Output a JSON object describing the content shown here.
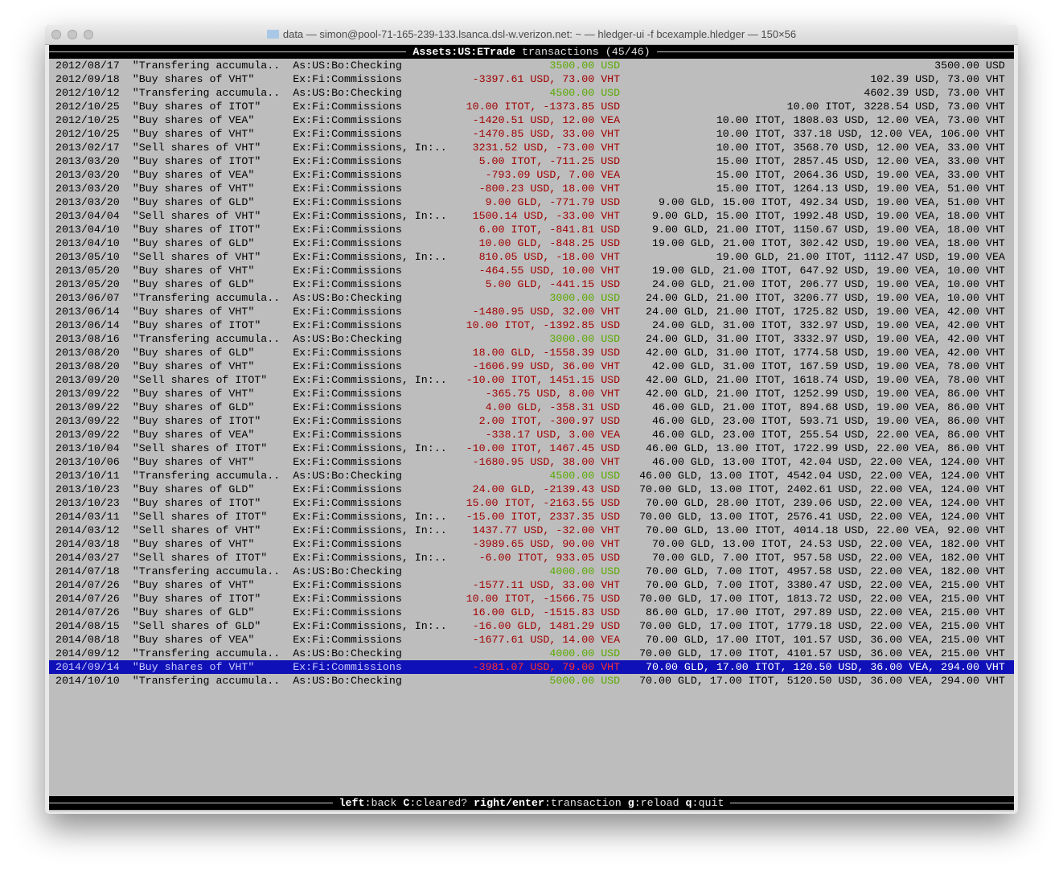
{
  "window": {
    "title": "data — simon@pool-71-165-239-133.lsanca.dsl-w.verizon.net: ~ — hledger-ui -f bcexample.hledger — 150×56"
  },
  "header": {
    "account": "Assets:US:ETrade",
    "label": "transactions",
    "count": "(45/46)"
  },
  "footer": {
    "keys": [
      {
        "key": "left",
        "action": "back"
      },
      {
        "key": "C",
        "action": "cleared?"
      },
      {
        "key": "right/enter",
        "action": "transaction"
      },
      {
        "key": "g",
        "action": "reload"
      },
      {
        "key": "q",
        "action": "quit"
      }
    ]
  },
  "colors": {
    "negative": "#a00000",
    "positive": "#5aaa00",
    "selection": "#1010b8",
    "background": "#bdbdbd"
  },
  "selected_index": 44,
  "rows": [
    [
      "2012/08/17",
      "\"Transfering accumula..",
      "As:US:Bo:Checking",
      "3500.00 USD",
      "3500.00 USD",
      "pos"
    ],
    [
      "2012/09/18",
      "\"Buy shares of VHT\"",
      "Ex:Fi:Commissions",
      "-3397.61 USD, 73.00 VHT",
      "102.39 USD, 73.00 VHT",
      "neg"
    ],
    [
      "2012/10/12",
      "\"Transfering accumula..",
      "As:US:Bo:Checking",
      "4500.00 USD",
      "4602.39 USD, 73.00 VHT",
      "pos"
    ],
    [
      "2012/10/25",
      "\"Buy shares of ITOT\"",
      "Ex:Fi:Commissions",
      "10.00 ITOT, -1373.85 USD",
      "10.00 ITOT, 3228.54 USD, 73.00 VHT",
      "neg"
    ],
    [
      "2012/10/25",
      "\"Buy shares of VEA\"",
      "Ex:Fi:Commissions",
      "-1420.51 USD, 12.00 VEA",
      "10.00 ITOT, 1808.03 USD, 12.00 VEA, 73.00 VHT",
      "neg"
    ],
    [
      "2012/10/25",
      "\"Buy shares of VHT\"",
      "Ex:Fi:Commissions",
      "-1470.85 USD, 33.00 VHT",
      "10.00 ITOT, 337.18 USD, 12.00 VEA, 106.00 VHT",
      "neg"
    ],
    [
      "2013/02/17",
      "\"Sell shares of VHT\"",
      "Ex:Fi:Commissions, In:..",
      "3231.52 USD, -73.00 VHT",
      "10.00 ITOT, 3568.70 USD, 12.00 VEA, 33.00 VHT",
      "neg"
    ],
    [
      "2013/03/20",
      "\"Buy shares of ITOT\"",
      "Ex:Fi:Commissions",
      "5.00 ITOT, -711.25 USD",
      "15.00 ITOT, 2857.45 USD, 12.00 VEA, 33.00 VHT",
      "neg"
    ],
    [
      "2013/03/20",
      "\"Buy shares of VEA\"",
      "Ex:Fi:Commissions",
      "-793.09 USD, 7.00 VEA",
      "15.00 ITOT, 2064.36 USD, 19.00 VEA, 33.00 VHT",
      "neg"
    ],
    [
      "2013/03/20",
      "\"Buy shares of VHT\"",
      "Ex:Fi:Commissions",
      "-800.23 USD, 18.00 VHT",
      "15.00 ITOT, 1264.13 USD, 19.00 VEA, 51.00 VHT",
      "neg"
    ],
    [
      "2013/03/20",
      "\"Buy shares of GLD\"",
      "Ex:Fi:Commissions",
      "9.00 GLD, -771.79 USD",
      "9.00 GLD, 15.00 ITOT, 492.34 USD, 19.00 VEA, 51.00 VHT",
      "neg"
    ],
    [
      "2013/04/04",
      "\"Sell shares of VHT\"",
      "Ex:Fi:Commissions, In:..",
      "1500.14 USD, -33.00 VHT",
      "9.00 GLD, 15.00 ITOT, 1992.48 USD, 19.00 VEA, 18.00 VHT",
      "neg"
    ],
    [
      "2013/04/10",
      "\"Buy shares of ITOT\"",
      "Ex:Fi:Commissions",
      "6.00 ITOT, -841.81 USD",
      "9.00 GLD, 21.00 ITOT, 1150.67 USD, 19.00 VEA, 18.00 VHT",
      "neg"
    ],
    [
      "2013/04/10",
      "\"Buy shares of GLD\"",
      "Ex:Fi:Commissions",
      "10.00 GLD, -848.25 USD",
      "19.00 GLD, 21.00 ITOT, 302.42 USD, 19.00 VEA, 18.00 VHT",
      "neg"
    ],
    [
      "2013/05/10",
      "\"Sell shares of VHT\"",
      "Ex:Fi:Commissions, In:..",
      "810.05 USD, -18.00 VHT",
      "19.00 GLD, 21.00 ITOT, 1112.47 USD, 19.00 VEA",
      "neg"
    ],
    [
      "2013/05/20",
      "\"Buy shares of VHT\"",
      "Ex:Fi:Commissions",
      "-464.55 USD, 10.00 VHT",
      "19.00 GLD, 21.00 ITOT, 647.92 USD, 19.00 VEA, 10.00 VHT",
      "neg"
    ],
    [
      "2013/05/20",
      "\"Buy shares of GLD\"",
      "Ex:Fi:Commissions",
      "5.00 GLD, -441.15 USD",
      "24.00 GLD, 21.00 ITOT, 206.77 USD, 19.00 VEA, 10.00 VHT",
      "neg"
    ],
    [
      "2013/06/07",
      "\"Transfering accumula..",
      "As:US:Bo:Checking",
      "3000.00 USD",
      "24.00 GLD, 21.00 ITOT, 3206.77 USD, 19.00 VEA, 10.00 VHT",
      "pos"
    ],
    [
      "2013/06/14",
      "\"Buy shares of VHT\"",
      "Ex:Fi:Commissions",
      "-1480.95 USD, 32.00 VHT",
      "24.00 GLD, 21.00 ITOT, 1725.82 USD, 19.00 VEA, 42.00 VHT",
      "neg"
    ],
    [
      "2013/06/14",
      "\"Buy shares of ITOT\"",
      "Ex:Fi:Commissions",
      "10.00 ITOT, -1392.85 USD",
      "24.00 GLD, 31.00 ITOT, 332.97 USD, 19.00 VEA, 42.00 VHT",
      "neg"
    ],
    [
      "2013/08/16",
      "\"Transfering accumula..",
      "As:US:Bo:Checking",
      "3000.00 USD",
      "24.00 GLD, 31.00 ITOT, 3332.97 USD, 19.00 VEA, 42.00 VHT",
      "pos"
    ],
    [
      "2013/08/20",
      "\"Buy shares of GLD\"",
      "Ex:Fi:Commissions",
      "18.00 GLD, -1558.39 USD",
      "42.00 GLD, 31.00 ITOT, 1774.58 USD, 19.00 VEA, 42.00 VHT",
      "neg"
    ],
    [
      "2013/08/20",
      "\"Buy shares of VHT\"",
      "Ex:Fi:Commissions",
      "-1606.99 USD, 36.00 VHT",
      "42.00 GLD, 31.00 ITOT, 167.59 USD, 19.00 VEA, 78.00 VHT",
      "neg"
    ],
    [
      "2013/09/20",
      "\"Sell shares of ITOT\"",
      "Ex:Fi:Commissions, In:..",
      "-10.00 ITOT, 1451.15 USD",
      "42.00 GLD, 21.00 ITOT, 1618.74 USD, 19.00 VEA, 78.00 VHT",
      "neg"
    ],
    [
      "2013/09/22",
      "\"Buy shares of VHT\"",
      "Ex:Fi:Commissions",
      "-365.75 USD, 8.00 VHT",
      "42.00 GLD, 21.00 ITOT, 1252.99 USD, 19.00 VEA, 86.00 VHT",
      "neg"
    ],
    [
      "2013/09/22",
      "\"Buy shares of GLD\"",
      "Ex:Fi:Commissions",
      "4.00 GLD, -358.31 USD",
      "46.00 GLD, 21.00 ITOT, 894.68 USD, 19.00 VEA, 86.00 VHT",
      "neg"
    ],
    [
      "2013/09/22",
      "\"Buy shares of ITOT\"",
      "Ex:Fi:Commissions",
      "2.00 ITOT, -300.97 USD",
      "46.00 GLD, 23.00 ITOT, 593.71 USD, 19.00 VEA, 86.00 VHT",
      "neg"
    ],
    [
      "2013/09/22",
      "\"Buy shares of VEA\"",
      "Ex:Fi:Commissions",
      "-338.17 USD, 3.00 VEA",
      "46.00 GLD, 23.00 ITOT, 255.54 USD, 22.00 VEA, 86.00 VHT",
      "neg"
    ],
    [
      "2013/10/04",
      "\"Sell shares of ITOT\"",
      "Ex:Fi:Commissions, In:..",
      "-10.00 ITOT, 1467.45 USD",
      "46.00 GLD, 13.00 ITOT, 1722.99 USD, 22.00 VEA, 86.00 VHT",
      "neg"
    ],
    [
      "2013/10/06",
      "\"Buy shares of VHT\"",
      "Ex:Fi:Commissions",
      "-1680.95 USD, 38.00 VHT",
      "46.00 GLD, 13.00 ITOT, 42.04 USD, 22.00 VEA, 124.00 VHT",
      "neg"
    ],
    [
      "2013/10/11",
      "\"Transfering accumula..",
      "As:US:Bo:Checking",
      "4500.00 USD",
      "46.00 GLD, 13.00 ITOT, 4542.04 USD, 22.00 VEA, 124.00 VHT",
      "pos"
    ],
    [
      "2013/10/23",
      "\"Buy shares of GLD\"",
      "Ex:Fi:Commissions",
      "24.00 GLD, -2139.43 USD",
      "70.00 GLD, 13.00 ITOT, 2402.61 USD, 22.00 VEA, 124.00 VHT",
      "neg"
    ],
    [
      "2013/10/23",
      "\"Buy shares of ITOT\"",
      "Ex:Fi:Commissions",
      "15.00 ITOT, -2163.55 USD",
      "70.00 GLD, 28.00 ITOT, 239.06 USD, 22.00 VEA, 124.00 VHT",
      "neg"
    ],
    [
      "2014/03/11",
      "\"Sell shares of ITOT\"",
      "Ex:Fi:Commissions, In:..",
      "-15.00 ITOT, 2337.35 USD",
      "70.00 GLD, 13.00 ITOT, 2576.41 USD, 22.00 VEA, 124.00 VHT",
      "neg"
    ],
    [
      "2014/03/12",
      "\"Sell shares of VHT\"",
      "Ex:Fi:Commissions, In:..",
      "1437.77 USD, -32.00 VHT",
      "70.00 GLD, 13.00 ITOT, 4014.18 USD, 22.00 VEA, 92.00 VHT",
      "neg"
    ],
    [
      "2014/03/18",
      "\"Buy shares of VHT\"",
      "Ex:Fi:Commissions",
      "-3989.65 USD, 90.00 VHT",
      "70.00 GLD, 13.00 ITOT, 24.53 USD, 22.00 VEA, 182.00 VHT",
      "neg"
    ],
    [
      "2014/03/27",
      "\"Sell shares of ITOT\"",
      "Ex:Fi:Commissions, In:..",
      "-6.00 ITOT, 933.05 USD",
      "70.00 GLD, 7.00 ITOT, 957.58 USD, 22.00 VEA, 182.00 VHT",
      "neg"
    ],
    [
      "2014/07/18",
      "\"Transfering accumula..",
      "As:US:Bo:Checking",
      "4000.00 USD",
      "70.00 GLD, 7.00 ITOT, 4957.58 USD, 22.00 VEA, 182.00 VHT",
      "pos"
    ],
    [
      "2014/07/26",
      "\"Buy shares of VHT\"",
      "Ex:Fi:Commissions",
      "-1577.11 USD, 33.00 VHT",
      "70.00 GLD, 7.00 ITOT, 3380.47 USD, 22.00 VEA, 215.00 VHT",
      "neg"
    ],
    [
      "2014/07/26",
      "\"Buy shares of ITOT\"",
      "Ex:Fi:Commissions",
      "10.00 ITOT, -1566.75 USD",
      "70.00 GLD, 17.00 ITOT, 1813.72 USD, 22.00 VEA, 215.00 VHT",
      "neg"
    ],
    [
      "2014/07/26",
      "\"Buy shares of GLD\"",
      "Ex:Fi:Commissions",
      "16.00 GLD, -1515.83 USD",
      "86.00 GLD, 17.00 ITOT, 297.89 USD, 22.00 VEA, 215.00 VHT",
      "neg"
    ],
    [
      "2014/08/15",
      "\"Sell shares of GLD\"",
      "Ex:Fi:Commissions, In:..",
      "-16.00 GLD, 1481.29 USD",
      "70.00 GLD, 17.00 ITOT, 1779.18 USD, 22.00 VEA, 215.00 VHT",
      "neg"
    ],
    [
      "2014/08/18",
      "\"Buy shares of VEA\"",
      "Ex:Fi:Commissions",
      "-1677.61 USD, 14.00 VEA",
      "70.00 GLD, 17.00 ITOT, 101.57 USD, 36.00 VEA, 215.00 VHT",
      "neg"
    ],
    [
      "2014/09/12",
      "\"Transfering accumula..",
      "As:US:Bo:Checking",
      "4000.00 USD",
      "70.00 GLD, 17.00 ITOT, 4101.57 USD, 36.00 VEA, 215.00 VHT",
      "pos"
    ],
    [
      "2014/09/14",
      "\"Buy shares of VHT\"",
      "Ex:Fi:Commissions",
      "-3981.07 USD, 79.00 VHT",
      "70.00 GLD, 17.00 ITOT, 120.50 USD, 36.00 VEA, 294.00 VHT",
      "neg"
    ],
    [
      "2014/10/10",
      "\"Transfering accumula..",
      "As:US:Bo:Checking",
      "5000.00 USD",
      "70.00 GLD, 17.00 ITOT, 5120.50 USD, 36.00 VEA, 294.00 VHT",
      "pos"
    ]
  ]
}
